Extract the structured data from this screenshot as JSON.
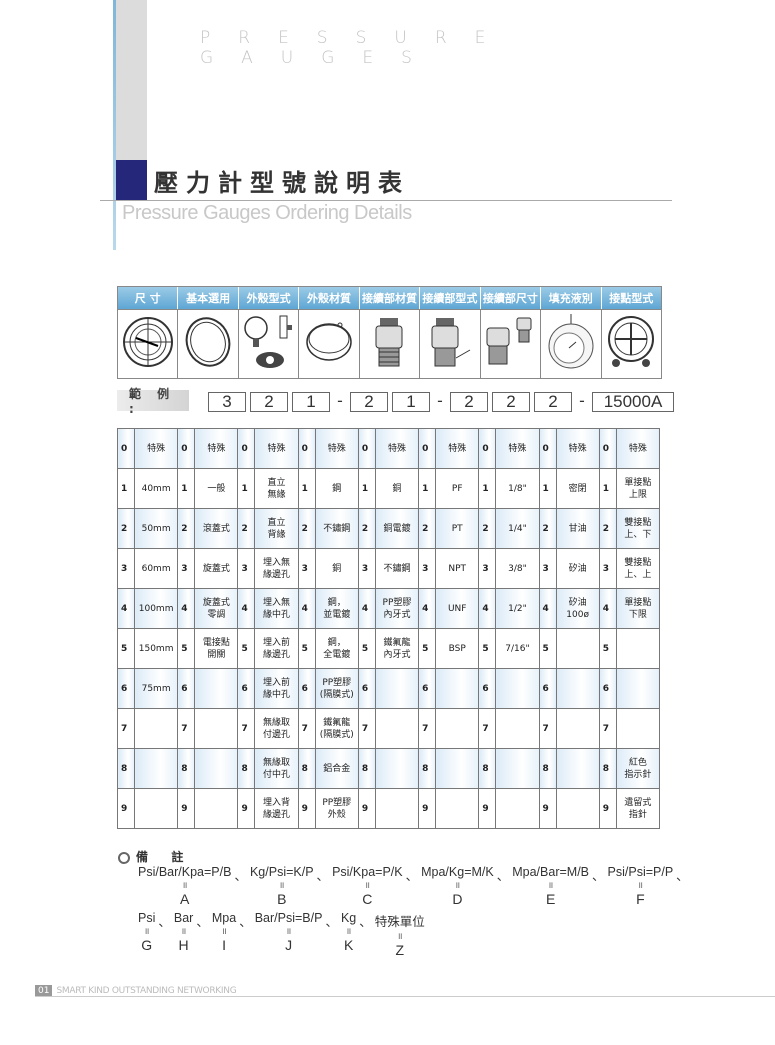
{
  "header": {
    "top_word": "PRESSURE GAUGES",
    "title": "壓力計型號說明表",
    "subtitle": "Pressure Gauges Ordering Details"
  },
  "categories": [
    "尺 寸",
    "基本選用",
    "外殼型式",
    "外殼材質",
    "接續部材質",
    "接續部型式",
    "接續部尺寸",
    "填充液別",
    "接點型式"
  ],
  "category_images": [
    "gauge-dial-icon",
    "ring-bezel-icon",
    "case-style-icon",
    "case-ring-icon",
    "fitting-icon",
    "fitting-thread-icon",
    "fitting-sizes-icon",
    "liquid-filled-gauge-icon",
    "contact-gauge-icon"
  ],
  "example": {
    "label": "範 例 :",
    "codes": [
      "3",
      "2",
      "1",
      "-",
      "2",
      "1",
      "-",
      "2",
      "2",
      "2",
      "-",
      "15000A"
    ]
  },
  "table": {
    "numbers": [
      "0",
      "1",
      "2",
      "3",
      "4",
      "5",
      "6",
      "7",
      "8",
      "9"
    ],
    "columns": [
      [
        "特殊",
        "40mm",
        "50mm",
        "60mm",
        "100mm",
        "150mm",
        "75mm",
        "",
        "",
        ""
      ],
      [
        "特殊",
        "一般",
        "滾蓋式",
        "旋蓋式",
        "旋蓋式\n零調",
        "電接點\n開關",
        "",
        "",
        "",
        ""
      ],
      [
        "特殊",
        "直立\n無緣",
        "直立\n背緣",
        "埋入無\n緣邊孔",
        "埋入無\n緣中孔",
        "埋入前\n緣邊孔",
        "埋入前\n緣中孔",
        "無緣取\n付邊孔",
        "無緣取\n付中孔",
        "埋入背\n緣邊孔"
      ],
      [
        "特殊",
        "鋼",
        "不鏽鋼",
        "銅",
        "鋼，\n並電鍍",
        "鋼，\n全電鍍",
        "PP塑膠\n(隔膜式)",
        "鐵氟龍\n(隔膜式)",
        "鋁合金",
        "PP塑膠\n外殼"
      ],
      [
        "特殊",
        "銅",
        "銅電鍍",
        "不鏽鋼",
        "PP塑膠\n內牙式",
        "鐵氟龍\n內牙式",
        "",
        "",
        "",
        ""
      ],
      [
        "特殊",
        "PF",
        "PT",
        "NPT",
        "UNF",
        "BSP",
        "",
        "",
        "",
        ""
      ],
      [
        "特殊",
        "1/8\"",
        "1/4\"",
        "3/8\"",
        "1/2\"",
        "7/16\"",
        "",
        "",
        "",
        ""
      ],
      [
        "特殊",
        "密閉",
        "甘油",
        "矽油",
        "矽油\n100ø",
        "",
        "",
        "",
        "",
        ""
      ],
      [
        "特殊",
        "單接點\n上限",
        "雙接點\n上、下",
        "雙接點\n上、上",
        "單接點\n下限",
        "",
        "",
        "",
        "紅色\n指示針",
        "遺留式\n指針"
      ]
    ]
  },
  "notes": {
    "heading": "備 註",
    "line1": [
      {
        "text": "Psi/Bar/Kpa=P/B",
        "letter": "A"
      },
      {
        "text": "Kg/Psi=K/P",
        "letter": "B"
      },
      {
        "text": "Psi/Kpa=P/K",
        "letter": "C"
      },
      {
        "text": "Mpa/Kg=M/K",
        "letter": "D"
      },
      {
        "text": "Mpa/Bar=M/B",
        "letter": "E"
      },
      {
        "text": "Psi/Psi=P/P",
        "letter": "F"
      }
    ],
    "line2": [
      {
        "text": "Psi",
        "letter": "G"
      },
      {
        "text": "Bar",
        "letter": "H"
      },
      {
        "text": "Mpa",
        "letter": "I"
      },
      {
        "text": "Bar/Psi=B/P",
        "letter": "J"
      },
      {
        "text": "Kg",
        "letter": "K"
      },
      {
        "text": "特殊單位",
        "letter": "Z"
      }
    ],
    "separator": "、",
    "equals": "॥"
  },
  "footer": {
    "page": "01",
    "text": "SMART KIND OUTSTANDING NETWORKING"
  },
  "colors": {
    "accent_navy": "#25287a",
    "header_blue": "#5ea6d4",
    "row_tint": "#dcebf7"
  }
}
